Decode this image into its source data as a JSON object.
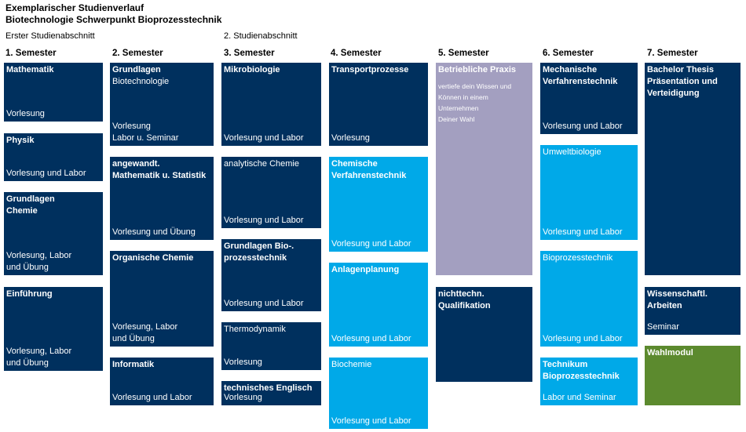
{
  "header": {
    "title": "Exemplarischer Studienverlauf",
    "subtitle": "Biotechnologie Schwerpunkt Bioprozesstechnik"
  },
  "sections": {
    "first": "Erster Studienabschnitt",
    "second": "2. Studienabschnitt"
  },
  "semesters": [
    "1. Semester",
    "2. Semester",
    "3. Semester",
    "4. Semester",
    "5. Semester",
    "6. Semester",
    "7. Semester"
  ],
  "colors": {
    "navy": "#00305e",
    "cyan": "#00a9e8",
    "lavender": "#a39fc0",
    "green": "#5c8a2e"
  },
  "modules": {
    "s1": {
      "mathematik": {
        "title": "Mathematik",
        "detail": "Vorlesung"
      },
      "physik": {
        "title": "Physik",
        "detail": "Vorlesung und Labor"
      },
      "grundlagen_chemie": {
        "title": "Grundlagen\nChemie",
        "detail": "Vorlesung, Labor\nund Übung"
      },
      "einfuehrung": {
        "title": "Einführung",
        "detail": "Vorlesung, Labor\nund Übung"
      }
    },
    "s2": {
      "grundlagen_biotech": {
        "title": "Grundlagen",
        "subtitle": "Biotechnologie",
        "detail": "Vorlesung\nLabor u. Seminar"
      },
      "angewandt_mathe": {
        "title": "angewandt.\nMathematik u. Statistik",
        "detail": "Vorlesung und Übung"
      },
      "organische_chemie": {
        "title": "Organische Chemie",
        "detail": "Vorlesung, Labor\nund Übung"
      },
      "informatik": {
        "title": "Informatik",
        "detail": "Vorlesung und Labor"
      }
    },
    "s3": {
      "mikrobiologie": {
        "title": "Mikrobiologie",
        "detail": "Vorlesung und Labor"
      },
      "analytische_chemie": {
        "title": "analytische Chemie",
        "detail": "Vorlesung und Labor"
      },
      "grundlagen_bio": {
        "title": "Grundlagen Bio-.\nprozesstechnik",
        "detail": "Vorlesung und Labor"
      },
      "thermodynamik": {
        "title": "Thermodynamik",
        "detail": "Vorlesung"
      },
      "technisches_englisch": {
        "title": "technisches Englisch",
        "detail": "Vorlesung"
      }
    },
    "s4": {
      "transportprozesse": {
        "title": "Transportprozesse",
        "detail": "Vorlesung"
      },
      "chemische_vt": {
        "title": "Chemische\nVerfahrenstechnik",
        "detail": "Vorlesung und Labor"
      },
      "anlagenplanung": {
        "title": "Anlagenplanung",
        "detail": "Vorlesung und Labor"
      },
      "biochemie": {
        "title": "Biochemie",
        "detail": "Vorlesung und Labor"
      }
    },
    "s5": {
      "praxis": {
        "title": "Betriebliche Praxis",
        "note": "vertiefe dein Wissen und\nKönnen in einem\nUnternehmen\nDeiner Wahl"
      },
      "nichttechn": {
        "title": "nichttechn.\nQualifikation"
      }
    },
    "s6": {
      "mechanische_vt": {
        "title": "Mechanische\nVerfahrenstechnik",
        "detail": "Vorlesung und Labor"
      },
      "umweltbiologie": {
        "title": "Umweltbiologie",
        "detail": "Vorlesung und Labor"
      },
      "bioprozesstechnik": {
        "title": "Bioprozesstechnik",
        "detail": "Vorlesung und Labor"
      },
      "technikum": {
        "title": "Technikum\nBioprozesstechnik",
        "detail": "Labor und Seminar"
      }
    },
    "s7": {
      "bachelor": {
        "title": "Bachelor Thesis\nPräsentation und\nVerteidigung"
      },
      "wissenschaftl": {
        "title": "Wissenschaftl.\nArbeiten",
        "detail": "Seminar"
      },
      "wahlmodul": {
        "title": "Wahlmodul"
      }
    }
  }
}
